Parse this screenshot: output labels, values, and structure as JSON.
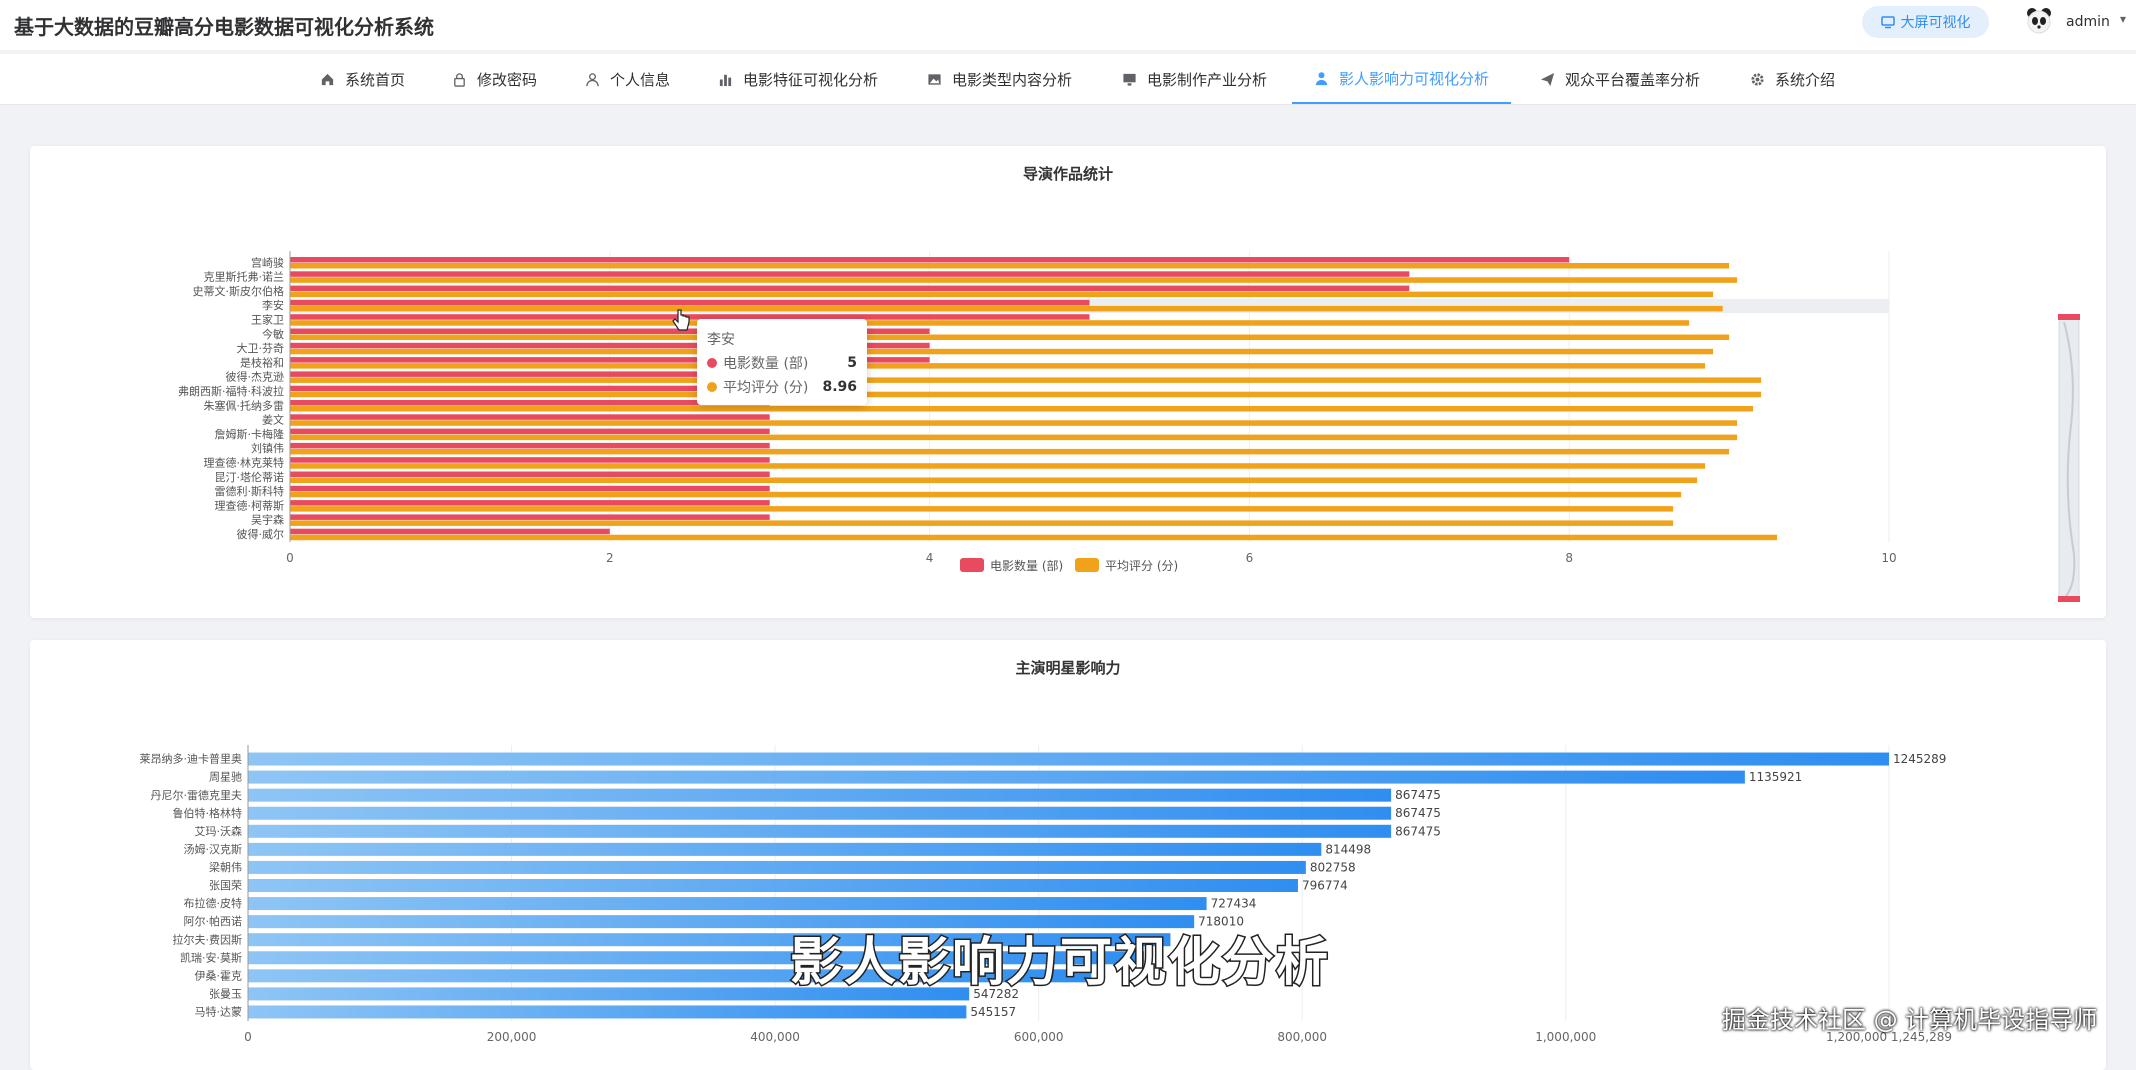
{
  "header": {
    "title": "基于大数据的豆瓣高分电影数据可视化分析系统",
    "big_screen_label": "大屏可视化",
    "username": "admin"
  },
  "nav": {
    "items": [
      {
        "label": "系统首页",
        "icon": "home-icon"
      },
      {
        "label": "修改密码",
        "icon": "lock-icon"
      },
      {
        "label": "个人信息",
        "icon": "user-icon"
      },
      {
        "label": "电影特征可视化分析",
        "icon": "bar-chart-icon"
      },
      {
        "label": "电影类型内容分析",
        "icon": "image-icon"
      },
      {
        "label": "电影制作产业分析",
        "icon": "monitor-icon"
      },
      {
        "label": "影人影响力可视化分析",
        "icon": "person-icon",
        "active": true
      },
      {
        "label": "观众平台覆盖率分析",
        "icon": "send-icon"
      },
      {
        "label": "系统介绍",
        "icon": "gear-icon"
      }
    ]
  },
  "accent_color": "#409eff",
  "chart_data": [
    {
      "type": "bar",
      "orientation": "horizontal",
      "title": "导演作品统计",
      "categories": [
        "宫崎骏",
        "克里斯托弗·诺兰",
        "史蒂文·斯皮尔伯格",
        "李安",
        "王家卫",
        "今敏",
        "大卫·芬奇",
        "是枝裕和",
        "彼得·杰克逊",
        "弗朗西斯·福特·科波拉",
        "朱塞佩·托纳多雷",
        "姜文",
        "詹姆斯·卡梅隆",
        "刘镇伟",
        "理查德·林克莱特",
        "昆汀·塔伦蒂诺",
        "雷德利·斯科特",
        "理查德·柯蒂斯",
        "吴宇森",
        "彼得·威尔"
      ],
      "series": [
        {
          "name": "电影数量 (部)",
          "color": "#e84a5f",
          "values": [
            8,
            7,
            7,
            5,
            5,
            4,
            4,
            4,
            3,
            3,
            3,
            3,
            3,
            3,
            3,
            3,
            3,
            3,
            3,
            2
          ]
        },
        {
          "name": "平均评分 (分)",
          "color": "#f0a21b",
          "values": [
            9.0,
            9.05,
            8.9,
            8.96,
            8.75,
            9.0,
            8.9,
            8.85,
            9.2,
            9.2,
            9.15,
            9.05,
            9.05,
            9.0,
            8.85,
            8.8,
            8.7,
            8.65,
            8.65,
            9.3
          ]
        }
      ],
      "xlim": [
        0,
        10
      ],
      "xticks": [
        "0",
        "2",
        "4",
        "6",
        "8",
        "10"
      ],
      "tooltip": {
        "title": "李安",
        "rows": [
          {
            "label": "电影数量 (部)",
            "value": "5"
          },
          {
            "label": "平均评分 (分)",
            "value": "8.96"
          }
        ]
      },
      "legend_position": "bottom-center"
    },
    {
      "type": "bar",
      "orientation": "horizontal",
      "title": "主演明星影响力",
      "categories": [
        "莱昂纳多·迪卡普里奥",
        "周星驰",
        "丹尼尔·雷德克里夫",
        "鲁伯特·格林特",
        "艾玛·沃森",
        "汤姆·汉克斯",
        "梁朝伟",
        "张国荣",
        "布拉德·皮特",
        "阿尔·帕西诺",
        "拉尔夫·费因斯",
        "凯瑞·安·莫斯",
        "伊桑·霍克",
        "张曼玉",
        "马特·达蒙"
      ],
      "values": [
        1245289,
        1135921,
        867475,
        867475,
        867475,
        814498,
        802758,
        796774,
        727434,
        718010,
        700000,
        680000,
        640000,
        547282,
        545157
      ],
      "value_labels": [
        "1245289",
        "1135921",
        "867475",
        "867475",
        "867475",
        "814498",
        "802758",
        "796774",
        "727434",
        "718010",
        "",
        "",
        "",
        "547282",
        "545157"
      ],
      "xlim": [
        0,
        1245289
      ],
      "xticks": [
        "0",
        "200,000",
        "400,000",
        "600,000",
        "800,000",
        "1,000,000",
        "1,200,000 1,245,289"
      ],
      "color": "#2f8ef0"
    }
  ],
  "overlay": {
    "subtitle": "影人影响力可视化分析",
    "watermark": "掘金技术社区 @ 计算机毕设指导师"
  }
}
